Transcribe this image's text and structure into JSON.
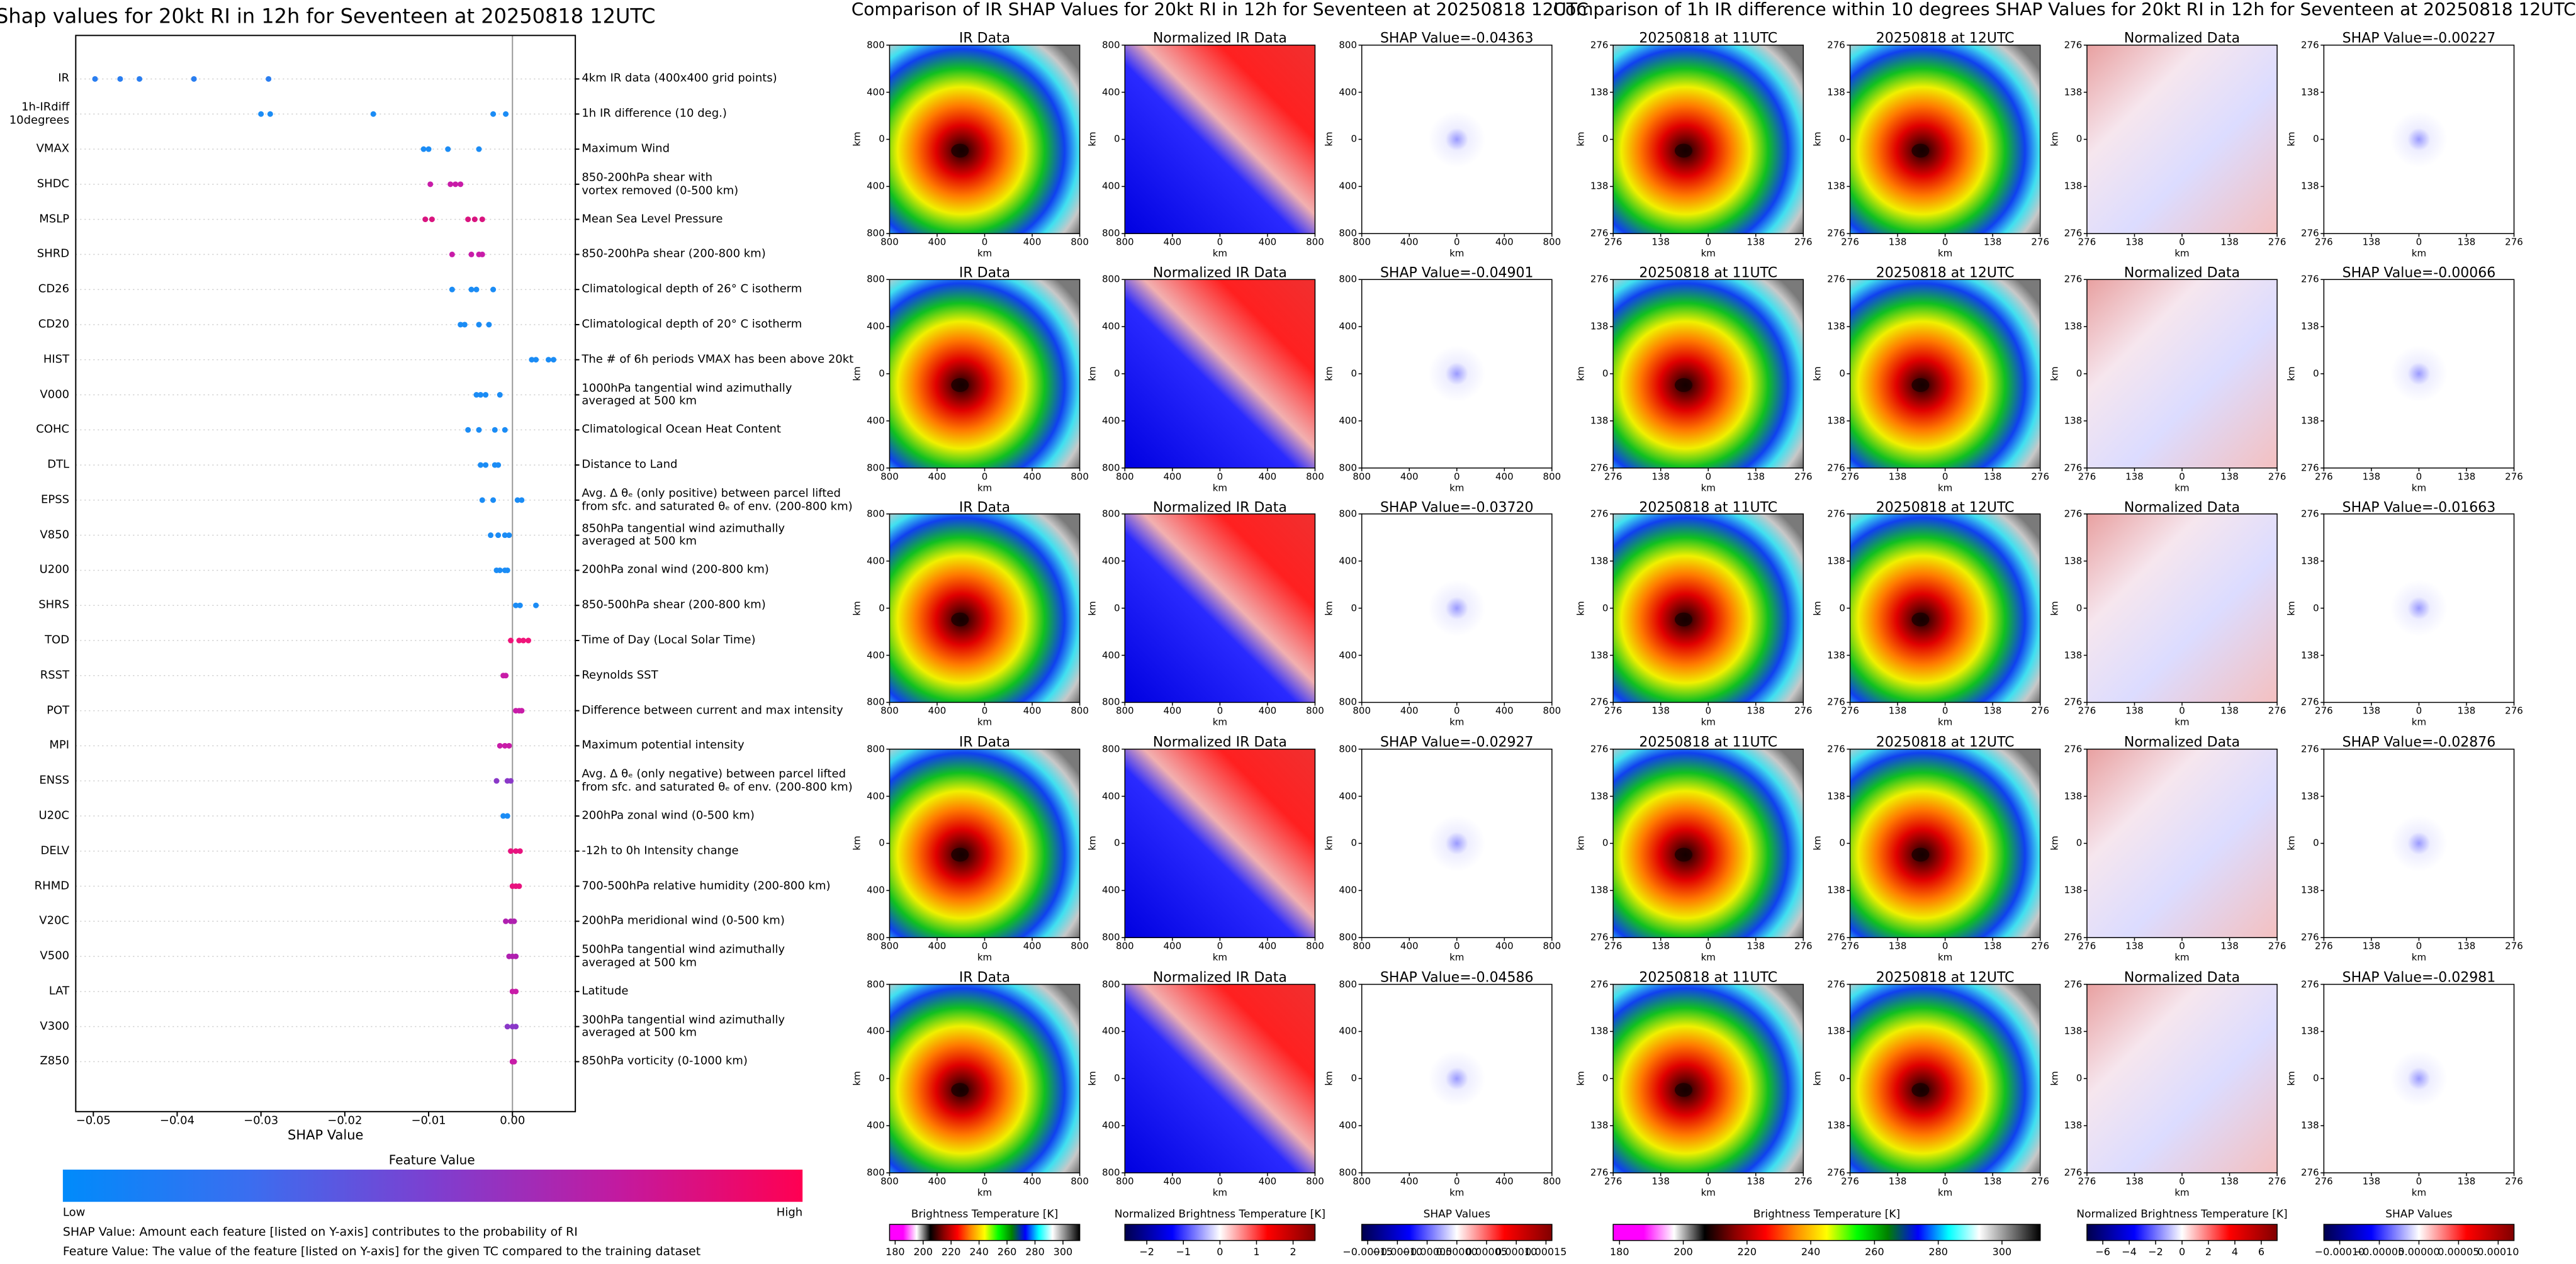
{
  "chart_data": [
    {
      "type": "beeswarm",
      "title": "Shap values for 20kt RI in 12h for Seventeen at 20250818 12UTC",
      "xlabel": "SHAP Value",
      "xlim": [
        -0.0521,
        0.0075
      ],
      "xticks": [
        {
          "value": -0.05,
          "label": "−0.05"
        },
        {
          "value": -0.04,
          "label": "−0.04"
        },
        {
          "value": -0.03,
          "label": "−0.03"
        },
        {
          "value": -0.02,
          "label": "−0.02"
        },
        {
          "value": -0.01,
          "label": "−0.01"
        },
        {
          "value": 0,
          "label": "0.00"
        }
      ],
      "series": [
        {
          "name": "IR",
          "description": "4km IR data (400x400 grid points)",
          "color": "#2a7ef0",
          "values": [
            -0.0498,
            -0.0468,
            -0.0445,
            -0.038,
            -0.0291
          ]
        },
        {
          "name": "1h-IRdiff\n10degrees",
          "description": "1h IR difference (10 deg.)",
          "color": "#1b8cf5",
          "values": [
            -0.03,
            -0.0289,
            -0.0166,
            -0.0023,
            -0.0008
          ]
        },
        {
          "name": "VMAX",
          "description": "Maximum Wind",
          "color": "#1b8cf5",
          "values": [
            -0.0106,
            -0.01,
            -0.0077,
            -0.004
          ]
        },
        {
          "name": "SHDC",
          "description": "850-200hPa shear with\nvortex removed (0-500 km)",
          "color": "#c81ca8",
          "values": [
            -0.0098,
            -0.0074,
            -0.0068,
            -0.0062
          ]
        },
        {
          "name": "MSLP",
          "description": "Mean Sea Level Pressure",
          "color": "#d9147f",
          "values": [
            -0.0104,
            -0.0096,
            -0.0053,
            -0.0045,
            -0.0036
          ]
        },
        {
          "name": "SHRD",
          "description": "850-200hPa shear (200-800 km)",
          "color": "#c81ca8",
          "values": [
            -0.0072,
            -0.0049,
            -0.004,
            -0.0036
          ]
        },
        {
          "name": "CD26",
          "description": "Climatological depth of 26° C isotherm",
          "color": "#1b8cf5",
          "values": [
            -0.0072,
            -0.0049,
            -0.0043,
            -0.0023
          ]
        },
        {
          "name": "CD20",
          "description": "Climatological depth of 20° C isotherm",
          "color": "#1b8cf5",
          "values": [
            -0.0062,
            -0.0057,
            -0.004,
            -0.0028
          ]
        },
        {
          "name": "HIST",
          "description": "The # of 6h periods VMAX has been above 20kt",
          "color": "#1b8cf5",
          "values": [
            0.0023,
            0.0028,
            0.0043,
            0.0049
          ]
        },
        {
          "name": "V000",
          "description": "1000hPa tangential wind azimuthally\naveraged at 500 km",
          "color": "#1b8cf5",
          "values": [
            -0.0043,
            -0.0038,
            -0.0032,
            -0.0015
          ]
        },
        {
          "name": "COHC",
          "description": "Climatological Ocean Heat Content",
          "color": "#1b8cf5",
          "values": [
            -0.0053,
            -0.004,
            -0.0021,
            -0.0009
          ]
        },
        {
          "name": "DTL",
          "description": "Distance to Land",
          "color": "#1b8cf5",
          "values": [
            -0.0038,
            -0.0032,
            -0.0021,
            -0.0017
          ]
        },
        {
          "name": "EPSS",
          "description": "Avg. Δ θₑ (only positive) between parcel lifted\nfrom sfc. and saturated θₑ of env. (200-800 km)",
          "color": "#1b8cf5",
          "values": [
            -0.0036,
            -0.0023,
            0.0006,
            0.0011
          ]
        },
        {
          "name": "V850",
          "description": "850hPa tangential wind azimuthally\naveraged at 500 km",
          "color": "#1b8cf5",
          "values": [
            -0.0026,
            -0.0017,
            -0.0009,
            -0.0004
          ]
        },
        {
          "name": "U200",
          "description": "200hPa zonal wind (200-800 km)",
          "color": "#1b8cf5",
          "values": [
            -0.0019,
            -0.0015,
            -0.0009,
            -0.0006
          ]
        },
        {
          "name": "SHRS",
          "description": "850-500hPa shear (200-800 km)",
          "color": "#1b8cf5",
          "values": [
            0.0004,
            0.0009,
            0.0028
          ]
        },
        {
          "name": "TOD",
          "description": "Time of Day (Local Solar Time)",
          "color": "#f0147a",
          "values": [
            -0.0002,
            0.0008,
            0.0013,
            0.0019
          ]
        },
        {
          "name": "RSST",
          "description": "Reynolds SST",
          "color": "#c81ca8",
          "values": [
            -0.0011,
            -0.0008
          ]
        },
        {
          "name": "POT",
          "description": "Difference between current and max intensity",
          "color": "#c81ca8",
          "values": [
            0.0004,
            0.0008,
            0.0011
          ]
        },
        {
          "name": "MPI",
          "description": "Maximum potential intensity",
          "color": "#c81ca8",
          "values": [
            -0.0015,
            -0.0009,
            -0.0004
          ]
        },
        {
          "name": "ENSS",
          "description": "Avg. Δ θₑ (only negative) between parcel lifted\nfrom sfc. and saturated θₑ of env. (200-800 km)",
          "color": "#8a38c8",
          "values": [
            -0.0019,
            -0.0006,
            -0.0002
          ]
        },
        {
          "name": "U20C",
          "description": "200hPa zonal wind (0-500 km)",
          "color": "#1b8cf5",
          "values": [
            -0.0011,
            -0.0006
          ]
        },
        {
          "name": "DELV",
          "description": "-12h to 0h Intensity change",
          "color": "#e8137f",
          "values": [
            -0.0002,
            0.0004,
            0.0009
          ]
        },
        {
          "name": "RHMD",
          "description": "700-500hPa relative humidity (200-800 km)",
          "color": "#e8137f",
          "values": [
            0,
            0.0004,
            0.0008
          ]
        },
        {
          "name": "V20C",
          "description": "200hPa meridional wind (0-500 km)",
          "color": "#b020b0",
          "values": [
            -0.0008,
            -0.0002,
            0.0002
          ]
        },
        {
          "name": "V500",
          "description": "500hPa tangential wind azimuthally\naveraged at 500 km",
          "color": "#b020b0",
          "values": [
            -0.0004,
            0,
            0.0004
          ]
        },
        {
          "name": "LAT",
          "description": "Latitude",
          "color": "#c81ca8",
          "values": [
            0,
            0.0004
          ]
        },
        {
          "name": "V300",
          "description": "300hPa tangential wind azimuthally\naveraged at 500 km",
          "color": "#8a38c8",
          "values": [
            -0.0006,
            0,
            0.0004
          ]
        },
        {
          "name": "Z850",
          "description": "850hPa vorticity (0-1000 km)",
          "color": "#c81ca8",
          "values": [
            0,
            0.0002
          ]
        }
      ],
      "colorbar": {
        "title": "Feature Value",
        "low": "Low",
        "high": "High",
        "colors": [
          "#008bfb",
          "#3a6ef0",
          "#7d3fd0",
          "#c21aa0",
          "#ff0052"
        ]
      },
      "notes": [
        "SHAP Value: Amount each feature [listed on Y-axis] contributes to the probability of RI",
        "Feature Value: The value of the feature [listed on Y-axis] for the given TC compared to the training dataset"
      ]
    },
    {
      "type": "image_grid",
      "title": "Comparison of IR SHAP Values for 20kt RI in 12h for Seventeen at 20250818 12UTC",
      "xlabel": "km",
      "ylabel": "km",
      "xlim": [
        -800,
        800
      ],
      "ylim": [
        -800,
        800
      ],
      "xticks": [
        {
          "value": -800,
          "label": "800"
        },
        {
          "value": -400,
          "label": "400"
        },
        0,
        400,
        800
      ],
      "yticks": [
        {
          "value": -800,
          "label": "800"
        },
        {
          "value": -400,
          "label": "400"
        },
        0,
        400,
        800
      ],
      "panel_titles": [
        [
          "IR Data",
          "Normalized IR Data",
          "SHAP Value=-0.04363"
        ],
        [
          "IR Data",
          "Normalized IR Data",
          "SHAP Value=-0.04901"
        ],
        [
          "IR Data",
          "Normalized IR Data",
          "SHAP Value=-0.03720"
        ],
        [
          "IR Data",
          "Normalized IR Data",
          "SHAP Value=-0.02927"
        ],
        [
          "IR Data",
          "Normalized IR Data",
          "SHAP Value=-0.04586"
        ]
      ],
      "colorbars": [
        {
          "label": "Brightness Temperature [K]",
          "lim": [
            176,
            312
          ],
          "ticks": [
            180,
            200,
            220,
            240,
            260,
            280,
            300
          ],
          "colors": [
            "#ff00ff",
            "#ff00ff",
            "#ffffff",
            "#000000",
            "#8b0000",
            "#ff0000",
            "#ff8c00",
            "#ffff00",
            "#00ff00",
            "#008000",
            "#0000ff",
            "#00ffff",
            "#ffffff",
            "#808080",
            "#000000"
          ]
        },
        {
          "label": "Normalized Brightness Temperature [K]",
          "lim": [
            -2.6,
            2.6
          ],
          "ticks": [
            {
              "value": -2,
              "label": "−2"
            },
            {
              "value": -1,
              "label": "−1"
            },
            0,
            1,
            2
          ],
          "colors": [
            "#00004c",
            "#0000ff",
            "#ffffff",
            "#ff0000",
            "#800000"
          ]
        },
        {
          "label": "SHAP Values",
          "lim": [
            -0.00016,
            0.00016
          ],
          "ticks": [
            {
              "value": -0.00015,
              "label": "−0.00015"
            },
            {
              "value": -0.0001,
              "label": "−0.00010"
            },
            {
              "value": -5e-05,
              "label": "−0.00005"
            },
            {
              "value": 0,
              "label": "0.00000"
            },
            {
              "value": 5e-05,
              "label": "0.00005"
            },
            {
              "value": 0.0001,
              "label": "0.00010"
            },
            {
              "value": 0.00015,
              "label": "0.00015"
            }
          ],
          "colors": [
            "#00004c",
            "#0000ff",
            "#ffffff",
            "#ff0000",
            "#800000"
          ]
        }
      ]
    },
    {
      "type": "image_grid",
      "title": "Comparison of 1h IR difference within 10 degrees SHAP Values for 20kt RI in 12h for Seventeen at 20250818 12UTC",
      "xlabel": "km",
      "ylabel": "km",
      "xlim": [
        -276,
        276
      ],
      "ylim": [
        -276,
        276
      ],
      "xticks": [
        {
          "value": -276,
          "label": "276"
        },
        {
          "value": -138,
          "label": "138"
        },
        0,
        138,
        276
      ],
      "yticks": [
        {
          "value": -276,
          "label": "276"
        },
        {
          "value": -138,
          "label": "138"
        },
        0,
        138,
        276
      ],
      "panel_titles": [
        [
          "20250818 at 11UTC",
          "20250818 at 12UTC",
          "Normalized Data",
          "SHAP Value=-0.00227"
        ],
        [
          "20250818 at 11UTC",
          "20250818 at 12UTC",
          "Normalized Data",
          "SHAP Value=-0.00066"
        ],
        [
          "20250818 at 11UTC",
          "20250818 at 12UTC",
          "Normalized Data",
          "SHAP Value=-0.01663"
        ],
        [
          "20250818 at 11UTC",
          "20250818 at 12UTC",
          "Normalized Data",
          "SHAP Value=-0.02876"
        ],
        [
          "20250818 at 11UTC",
          "20250818 at 12UTC",
          "Normalized Data",
          "SHAP Value=-0.02981"
        ]
      ],
      "colorbars": [
        {
          "label": "Brightness Temperature [K]",
          "lim": [
            178,
            312
          ],
          "ticks": [
            180,
            200,
            220,
            240,
            260,
            280,
            300
          ],
          "colors": [
            "#ff00ff",
            "#ff00ff",
            "#ffffff",
            "#000000",
            "#8b0000",
            "#ff0000",
            "#ff8c00",
            "#ffff00",
            "#00ff00",
            "#008000",
            "#0000ff",
            "#00ffff",
            "#ffffff",
            "#808080",
            "#000000"
          ]
        },
        {
          "label": "Normalized Brightness Temperature [K]",
          "lim": [
            -7.2,
            7.2
          ],
          "ticks": [
            {
              "value": -6,
              "label": "−6"
            },
            {
              "value": -4,
              "label": "−4"
            },
            {
              "value": -2,
              "label": "−2"
            },
            0,
            2,
            4,
            6
          ],
          "colors": [
            "#00004c",
            "#0000ff",
            "#ffffff",
            "#ff0000",
            "#800000"
          ]
        },
        {
          "label": "SHAP Values",
          "lim": [
            -0.00012,
            0.00012
          ],
          "ticks": [
            {
              "value": -0.0001,
              "label": "−0.00010"
            },
            {
              "value": -5e-05,
              "label": "−0.00005"
            },
            {
              "value": 0,
              "label": "0.00000"
            },
            {
              "value": 5e-05,
              "label": "0.00005"
            },
            {
              "value": 0.0001,
              "label": "0.00010"
            }
          ],
          "colors": [
            "#00004c",
            "#0000ff",
            "#ffffff",
            "#ff0000",
            "#800000"
          ]
        }
      ]
    }
  ]
}
